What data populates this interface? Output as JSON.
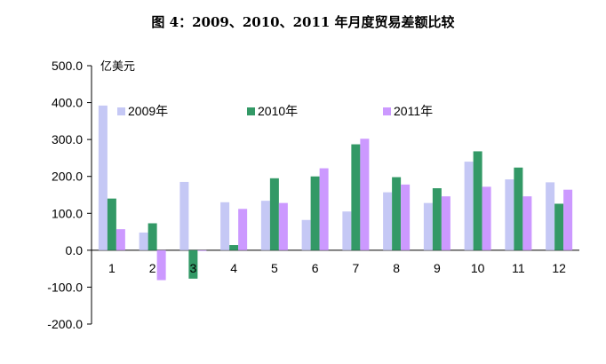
{
  "chart_data": {
    "type": "bar",
    "title": "图 4：2009、2010、2011 年月度贸易差额比较",
    "ylabel": "亿美元",
    "xlabel": "",
    "ylim": [
      -200,
      500
    ],
    "yticks": [
      "500.0",
      "400.0",
      "300.0",
      "200.0",
      "100.0",
      "0.0",
      "-100.0",
      "-200.0"
    ],
    "ytick_values": [
      500,
      400,
      300,
      200,
      100,
      0,
      -100,
      -200
    ],
    "categories": [
      "1",
      "2",
      "3",
      "4",
      "5",
      "6",
      "7",
      "8",
      "9",
      "10",
      "11",
      "12"
    ],
    "legend_position": "top",
    "grid": false,
    "series": [
      {
        "name": "2009年",
        "color": "#c5c8f5",
        "values": [
          392,
          48,
          185,
          130,
          134,
          82,
          105,
          157,
          128,
          240,
          192,
          184
        ]
      },
      {
        "name": "2010年",
        "color": "#339966",
        "values": [
          140,
          73,
          -77,
          14,
          195,
          200,
          287,
          198,
          168,
          268,
          224,
          126
        ]
      },
      {
        "name": "2011年",
        "color": "#cc99ff",
        "values": [
          57,
          -81,
          -2,
          112,
          128,
          222,
          302,
          178,
          146,
          172,
          146,
          164
        ]
      }
    ]
  }
}
